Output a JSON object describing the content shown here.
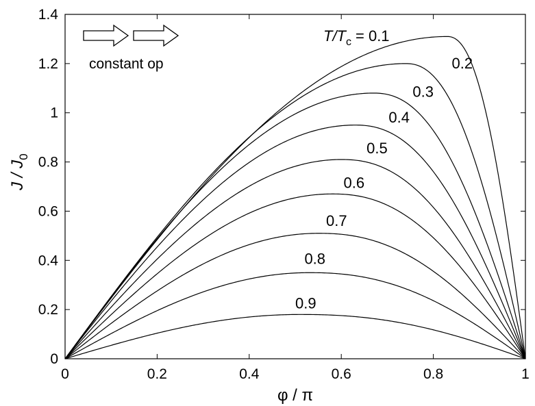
{
  "chart_data": {
    "type": "line",
    "title": "",
    "xlabel": "φ / π",
    "ylabel_main": "J / J",
    "ylabel_sub": "0",
    "xlim": [
      0,
      1
    ],
    "ylim": [
      0,
      1.4
    ],
    "xticks": [
      "0",
      "0.2",
      "0.4",
      "0.6",
      "0.8",
      "1"
    ],
    "xtick_values": [
      0,
      0.2,
      0.4,
      0.6,
      0.8,
      1
    ],
    "yticks": [
      "0",
      "0.2",
      "0.4",
      "0.6",
      "0.8",
      "1",
      "1.2",
      "1.4"
    ],
    "ytick_values": [
      0,
      0.2,
      0.4,
      0.6,
      0.8,
      1,
      1.2,
      1.4
    ],
    "grid": false,
    "legend_prefix": {
      "T_main": "T/T",
      "T_sub": "c",
      "eq": "= 0.1"
    },
    "annotation": {
      "text": "constant op",
      "icon": "double-arrow-icon"
    },
    "series": [
      {
        "label": "0.1",
        "peak_x": 0.83,
        "peak_y": 1.31,
        "label_x": 0.6,
        "label_y": 1.335
      },
      {
        "label": "0.2",
        "peak_x": 0.74,
        "peak_y": 1.2,
        "label_x": 0.84,
        "label_y": 1.18
      },
      {
        "label": "0.3",
        "peak_x": 0.67,
        "peak_y": 1.08,
        "label_x": 0.755,
        "label_y": 1.065
      },
      {
        "label": "0.4",
        "peak_x": 0.63,
        "peak_y": 0.95,
        "label_x": 0.703,
        "label_y": 0.96
      },
      {
        "label": "0.5",
        "peak_x": 0.6,
        "peak_y": 0.81,
        "label_x": 0.655,
        "label_y": 0.835
      },
      {
        "label": "0.6",
        "peak_x": 0.58,
        "peak_y": 0.67,
        "label_x": 0.605,
        "label_y": 0.695
      },
      {
        "label": "0.7",
        "peak_x": 0.55,
        "peak_y": 0.51,
        "label_x": 0.567,
        "label_y": 0.54
      },
      {
        "label": "0.8",
        "peak_x": 0.53,
        "peak_y": 0.35,
        "label_x": 0.52,
        "label_y": 0.385
      },
      {
        "label": "0.9",
        "peak_x": 0.51,
        "peak_y": 0.18,
        "label_x": 0.5,
        "label_y": 0.205
      }
    ]
  }
}
